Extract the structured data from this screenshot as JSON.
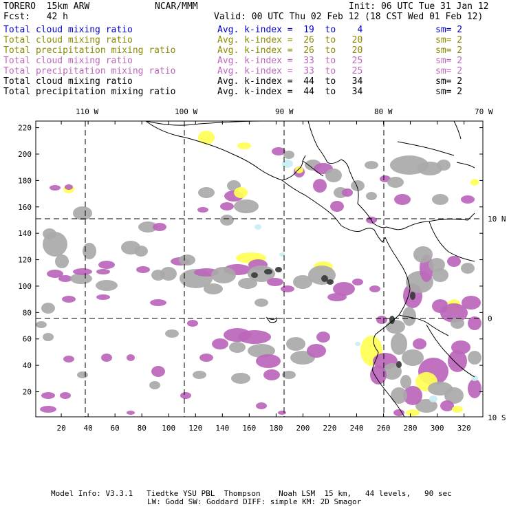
{
  "header": {
    "model": "TORERO  15km ARW",
    "org": "NCAR/MMM",
    "init": "Init: 06 UTC Tue 31 Jan 12",
    "fcst": "Fcst:   42 h",
    "valid": "Valid: 00 UTC Thu 02 Feb 12 (18 CST Wed 01 Feb 12)"
  },
  "legend": [
    {
      "field": "Total cloud mixing ratio",
      "kindex": "Avg. k-index =  19  to    4",
      "sm": "sm= 2",
      "color": "#0000cc"
    },
    {
      "field": "Total cloud mixing ratio",
      "kindex": "Avg. k-index =  26  to   20",
      "sm": "sm= 2",
      "color": "#8a8a00"
    },
    {
      "field": "Total precipitation mixing ratio",
      "kindex": "Avg. k-index =  26  to   20",
      "sm": "sm= 2",
      "color": "#8a8a00"
    },
    {
      "field": "Total cloud mixing ratio",
      "kindex": "Avg. k-index =  33  to   25",
      "sm": "sm= 2",
      "color": "#bb66bb"
    },
    {
      "field": "Total precipitation mixing ratio",
      "kindex": "Avg. k-index =  33  to   25",
      "sm": "sm= 2",
      "color": "#bb66bb"
    },
    {
      "field": "Total cloud mixing ratio",
      "kindex": "Avg. k-index =  44  to   34",
      "sm": "sm= 2",
      "color": "#000000"
    },
    {
      "field": "Total precipitation mixing ratio",
      "kindex": "Avg. k-index =  44  to   34",
      "sm": "sm= 2",
      "color": "#000000"
    }
  ],
  "axes": {
    "top_lon_labels": [
      "110 W",
      "100 W",
      "90 W",
      "80 W",
      "70 W"
    ],
    "right_lat_labels": [
      "10 N",
      "0",
      "10 S"
    ],
    "x_ticks": [
      20,
      40,
      60,
      80,
      100,
      120,
      140,
      160,
      180,
      200,
      220,
      240,
      260,
      280,
      300,
      320
    ],
    "y_ticks": [
      20,
      40,
      60,
      80,
      100,
      120,
      140,
      160,
      180,
      200,
      220
    ],
    "x_range": [
      1,
      334
    ],
    "y_range": [
      1,
      225
    ]
  },
  "footer": {
    "line1": "Model Info: V3.3.1   Tiedtke YSU PBL  Thompson    Noah LSM  15 km,   44 levels,   90 sec",
    "line2": "LW: Godd SW: Goddard DIFF: simple KM: 2D Smagor"
  },
  "colors": {
    "gray": "#a9a9a9",
    "dark": "#3a3a3a",
    "purple": "#bb66bb",
    "yellow": "#ffff55",
    "cyan": "#c8eef4"
  }
}
